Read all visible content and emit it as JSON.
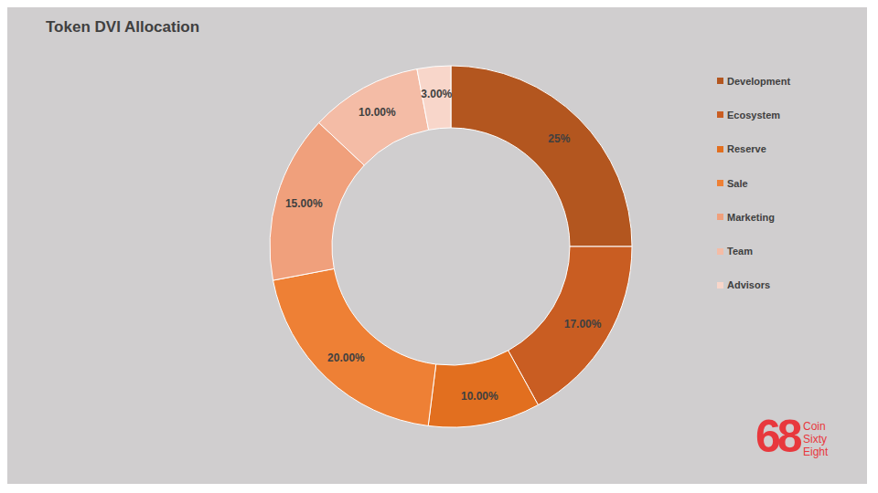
{
  "chart_data": {
    "type": "pie",
    "title": "Token DVI Allocation",
    "categories": [
      "Development",
      "Ecosystem",
      "Reserve",
      "Sale",
      "Marketing",
      "Team",
      "Advisors"
    ],
    "values": [
      25,
      17,
      10,
      20,
      15,
      10,
      3
    ],
    "value_labels": [
      "25%",
      "17.00%",
      "10.00%",
      "20.00%",
      "15.00%",
      "10.00%",
      "3.00%"
    ],
    "colors": [
      "#b3561f",
      "#c95d22",
      "#e26f1f",
      "#ee8035",
      "#f0a07c",
      "#f4bca6",
      "#f8d6ca"
    ],
    "data_labels": true,
    "legend": "right",
    "annotations": [
      "68",
      "Coin",
      "Sixty",
      "Eight"
    ]
  }
}
